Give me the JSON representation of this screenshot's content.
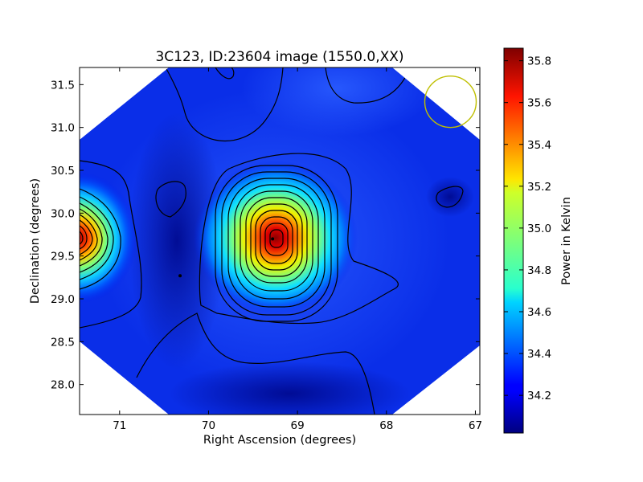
{
  "chart_data": {
    "type": "heatmap",
    "title": "3C123, ID:23604 image (1550.0,XX)",
    "xlabel": "Right Ascension (degrees)",
    "ylabel": "Declination (degrees)",
    "xlim": [
      71.45,
      66.95
    ],
    "ylim": [
      27.65,
      31.7
    ],
    "x_ticks": [
      71,
      70,
      69,
      68,
      67
    ],
    "y_ticks": [
      28.0,
      28.5,
      29.0,
      29.5,
      30.0,
      30.5,
      31.0,
      31.5
    ],
    "x_tick_labels": [
      "71",
      "70",
      "69",
      "68",
      "67"
    ],
    "y_tick_labels": [
      "28.0",
      "28.5",
      "29.0",
      "29.5",
      "30.0",
      "30.5",
      "31.0",
      "31.5"
    ],
    "colorbar": {
      "label": "Power in Kelvin",
      "range": [
        34.02,
        35.86
      ],
      "ticks": [
        34.2,
        34.4,
        34.6,
        34.8,
        35.0,
        35.2,
        35.4,
        35.6,
        35.8
      ],
      "tick_labels": [
        "34.2",
        "34.4",
        "34.6",
        "34.8",
        "35.0",
        "35.2",
        "35.4",
        "35.6",
        "35.8"
      ],
      "colormap": "jet"
    },
    "grid": false,
    "sources": [
      {
        "ra": 69.28,
        "dec": 29.7,
        "peak": 35.86
      },
      {
        "ra": 71.45,
        "dec": 29.7,
        "peak": 35.8
      }
    ],
    "markers": [
      {
        "ra": 69.28,
        "dec": 29.7
      },
      {
        "ra": 70.32,
        "dec": 29.27
      }
    ],
    "beam_circle": {
      "ra": 67.28,
      "dec": 31.3,
      "color": "#bfbf00"
    }
  },
  "colors": {
    "background": "#ffffff",
    "contour": "#000000",
    "beam_circle": "#bfbf00"
  }
}
